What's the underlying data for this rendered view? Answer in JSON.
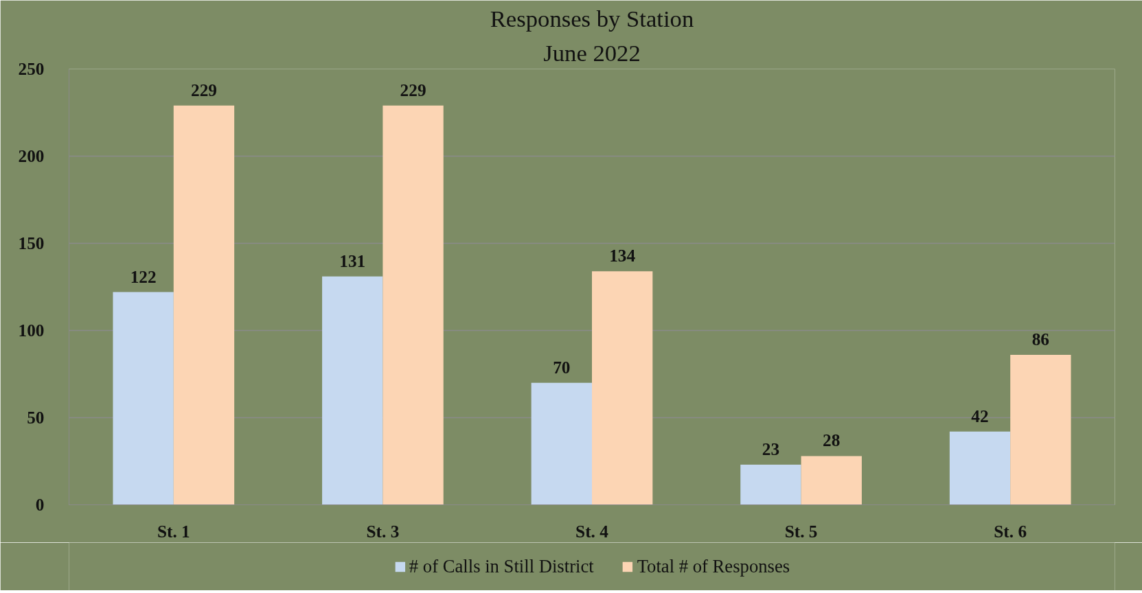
{
  "chart_data": {
    "type": "bar",
    "title": "Responses by Station",
    "subtitle": "June 2022",
    "categories": [
      "St. 1",
      "St. 3",
      "St. 4",
      "St. 5",
      "St. 6"
    ],
    "series": [
      {
        "name": "# of Calls in Still District",
        "color": "#c6d9f0",
        "values": [
          122,
          131,
          70,
          23,
          42
        ]
      },
      {
        "name": "Total # of Responses",
        "color": "#fcd5b4",
        "values": [
          229,
          229,
          134,
          28,
          86
        ]
      }
    ],
    "ylim": [
      0,
      250
    ],
    "yticks": [
      0,
      50,
      100,
      150,
      200,
      250
    ],
    "grid": "y",
    "legend": "bottom",
    "data_labels": true
  }
}
